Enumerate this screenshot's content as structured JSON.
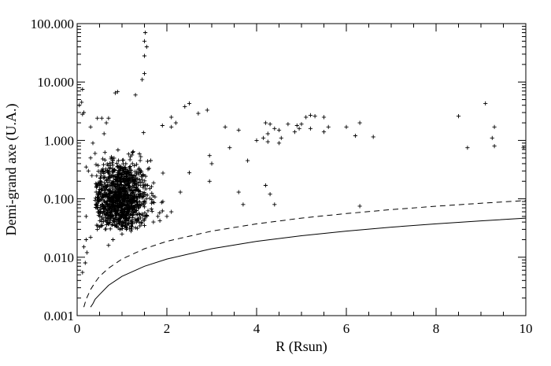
{
  "chart_data": {
    "type": "scatter",
    "title": "",
    "xlabel": "R (Rsun)",
    "ylabel": "Demi-grand axe (U.A.)",
    "xlim": [
      0,
      10
    ],
    "ylim": [
      0.001,
      100
    ],
    "y_scale": "log",
    "grid": false,
    "x_ticks": [
      0,
      2,
      4,
      6,
      8,
      10
    ],
    "x_tick_labels": [
      "0",
      "2",
      "4",
      "6",
      "8",
      "10"
    ],
    "y_ticks": [
      0.001,
      0.01,
      0.1,
      1,
      10,
      100
    ],
    "y_tick_labels": [
      "0.001",
      "0.010",
      "0.100",
      "1.000",
      "10.000",
      "100.000"
    ],
    "marker": "plus",
    "colors": {
      "points": "#000000",
      "axes": "#000000",
      "background": "#ffffff"
    },
    "series": [
      {
        "style": "dashed",
        "x": [
          0.15,
          0.2,
          0.3,
          0.4,
          0.5,
          0.7,
          1,
          1.5,
          2,
          3,
          4,
          5,
          6,
          7,
          8,
          9,
          10
        ],
        "values": [
          0.0014,
          0.0019,
          0.0028,
          0.0037,
          0.0047,
          0.0065,
          0.0093,
          0.014,
          0.0187,
          0.028,
          0.0373,
          0.0467,
          0.056,
          0.0653,
          0.0747,
          0.084,
          0.0933
        ]
      },
      {
        "style": "solid",
        "x": [
          0.3,
          0.35,
          0.4,
          0.5,
          0.7,
          1,
          1.5,
          2,
          3,
          4,
          5,
          6,
          7,
          8,
          9,
          10
        ],
        "values": [
          0.0014,
          0.0016,
          0.0019,
          0.0023,
          0.0033,
          0.0047,
          0.007,
          0.0093,
          0.014,
          0.0187,
          0.0233,
          0.028,
          0.0327,
          0.0373,
          0.042,
          0.0467
        ]
      }
    ],
    "points": [
      [
        1.52,
        70
      ],
      [
        1.5,
        50
      ],
      [
        1.55,
        40
      ],
      [
        1.5,
        28
      ],
      [
        1.5,
        14
      ],
      [
        1.45,
        11
      ],
      [
        0.12,
        7.5
      ],
      [
        0.85,
        6.5
      ],
      [
        0.9,
        6.8
      ],
      [
        1.3,
        6
      ],
      [
        0.1,
        4.5
      ],
      [
        0.05,
        4
      ],
      [
        0.15,
        3
      ],
      [
        0.12,
        2.8
      ],
      [
        2.5,
        4.3
      ],
      [
        2.4,
        3.8
      ],
      [
        2.9,
        3.3
      ],
      [
        2.7,
        2.9
      ],
      [
        2.1,
        2.5
      ],
      [
        2.2,
        2
      ],
      [
        1.9,
        1.8
      ],
      [
        2.1,
        1.7
      ],
      [
        0.45,
        2.4
      ],
      [
        0.55,
        2.4
      ],
      [
        0.65,
        2
      ],
      [
        0.7,
        2.4
      ],
      [
        0.3,
        1.7
      ],
      [
        0.6,
        1.3
      ],
      [
        0.35,
        0.9
      ],
      [
        0.4,
        0.6
      ],
      [
        0.3,
        0.5
      ],
      [
        0.25,
        0.3
      ],
      [
        0.2,
        0.35
      ],
      [
        0.33,
        0.25
      ],
      [
        0.2,
        0.05
      ],
      [
        0.45,
        0.03
      ],
      [
        0.2,
        0.02
      ],
      [
        0.3,
        0.022
      ],
      [
        0.15,
        0.015
      ],
      [
        0.22,
        0.012
      ],
      [
        0.18,
        0.008
      ],
      [
        0.12,
        0.0055
      ],
      [
        0.7,
        0.016
      ],
      [
        0.8,
        0.02
      ],
      [
        1.0,
        0.025
      ],
      [
        1.2,
        0.028
      ],
      [
        1.3,
        0.032
      ],
      [
        1.1,
        0.03
      ],
      [
        1.5,
        0.035
      ],
      [
        1.7,
        0.04
      ],
      [
        1.8,
        0.05
      ],
      [
        2.0,
        0.05
      ],
      [
        1.9,
        0.062
      ],
      [
        2.1,
        0.06
      ],
      [
        2.3,
        0.13
      ],
      [
        2.5,
        0.28
      ],
      [
        2.95,
        0.55
      ],
      [
        3.0,
        0.4
      ],
      [
        2.95,
        0.2
      ],
      [
        3.3,
        1.7
      ],
      [
        3.6,
        1.5
      ],
      [
        3.4,
        0.75
      ],
      [
        3.8,
        0.45
      ],
      [
        3.6,
        0.13
      ],
      [
        3.7,
        0.08
      ],
      [
        4.0,
        1.0
      ],
      [
        4.2,
        2
      ],
      [
        4.3,
        1.9
      ],
      [
        4.4,
        1.6
      ],
      [
        4.5,
        1.5
      ],
      [
        4.25,
        1.3
      ],
      [
        4.15,
        1.1
      ],
      [
        4.25,
        0.95
      ],
      [
        4.5,
        0.9
      ],
      [
        4.55,
        1.1
      ],
      [
        4.7,
        1.9
      ],
      [
        4.9,
        1.8
      ],
      [
        5.0,
        1.9
      ],
      [
        5.1,
        2.5
      ],
      [
        4.85,
        1.4
      ],
      [
        4.95,
        1.6
      ],
      [
        5.2,
        2.7
      ],
      [
        5.3,
        2.6
      ],
      [
        5.5,
        2.5
      ],
      [
        5.6,
        1.7
      ],
      [
        5.2,
        1.6
      ],
      [
        5.5,
        1.4
      ],
      [
        4.2,
        0.17
      ],
      [
        4.3,
        0.12
      ],
      [
        4.4,
        0.08
      ],
      [
        6.0,
        1.7
      ],
      [
        6.3,
        2.0
      ],
      [
        6.2,
        1.2
      ],
      [
        6.6,
        1.15
      ],
      [
        6.3,
        0.075
      ],
      [
        8.5,
        2.6
      ],
      [
        8.7,
        0.75
      ],
      [
        9.1,
        4.3
      ],
      [
        9.3,
        1.7
      ],
      [
        9.25,
        1.1
      ],
      [
        9.3,
        0.8
      ],
      [
        9.95,
        0.75
      ]
    ],
    "cluster": {
      "x_center": 0.95,
      "x_spread": 0.32,
      "x_min": 0.4,
      "x_max": 2.15,
      "y_log_center": -1.0,
      "y_log_spread": 0.33,
      "y_min": 0.03,
      "y_max": 4.0,
      "count": 1100,
      "seed": 12345
    }
  }
}
